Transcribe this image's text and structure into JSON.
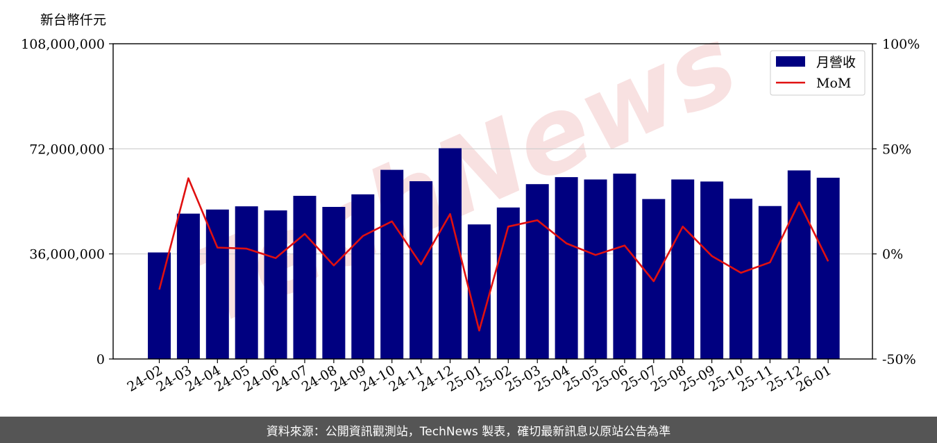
{
  "unit_label": "新台幣仟元",
  "footer_text": "資料來源：公開資訊觀測站，TechNews 製表，確切最新訊息以原站公告為準",
  "watermark_text": "TechNews",
  "colors": {
    "bar": "#000080",
    "line": "#e01010",
    "grid": "#cccccc",
    "footer_bg": "#555555",
    "watermark": "#f3c9c9"
  },
  "chart_data": {
    "type": "bar",
    "categories": [
      "24-02",
      "24-03",
      "24-04",
      "24-05",
      "24-06",
      "24-07",
      "24-08",
      "24-09",
      "24-10",
      "24-11",
      "24-12",
      "25-01",
      "25-02",
      "25-03",
      "25-04",
      "25-05",
      "25-06",
      "25-07",
      "25-08",
      "25-09",
      "25-10",
      "25-11",
      "25-12",
      "26-01"
    ],
    "series": [
      {
        "name": "月營收",
        "axis": "left",
        "type": "bar",
        "values": [
          36500000,
          49800000,
          51200000,
          52300000,
          50900000,
          55900000,
          52100000,
          56400000,
          64800000,
          60900000,
          72200000,
          46100000,
          51900000,
          59900000,
          62300000,
          61500000,
          63500000,
          54800000,
          61500000,
          60800000,
          54900000,
          52400000,
          64600000,
          62100000
        ]
      },
      {
        "name": "MoM",
        "axis": "right",
        "type": "line",
        "values": [
          -17,
          36,
          3,
          2.5,
          -2,
          9.5,
          -5.5,
          8.5,
          15.5,
          -5,
          19,
          -36.5,
          13,
          16,
          5,
          -0.5,
          4,
          -13,
          13,
          -1,
          -9,
          -4,
          24.5,
          -3.5
        ]
      }
    ],
    "y_left": {
      "ylim": [
        0,
        108000000
      ],
      "ticks": [
        "0",
        "36,000,000",
        "72,000,000",
        "108,000,000"
      ],
      "tick_values": [
        0,
        36000000,
        72000000,
        108000000
      ]
    },
    "y_right": {
      "ylim": [
        -50,
        100
      ],
      "ticks": [
        "-50%",
        "0%",
        "50%",
        "100%"
      ],
      "tick_values": [
        -50,
        0,
        50,
        100
      ]
    },
    "grid": "horizontal",
    "legend_position": "top-right"
  }
}
